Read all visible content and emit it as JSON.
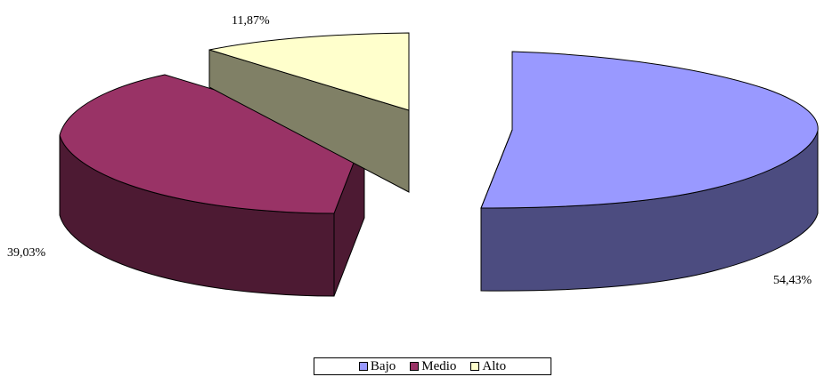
{
  "chart_data": {
    "type": "pie",
    "style": "3d-exploded",
    "title": "",
    "series": [
      {
        "name": "",
        "slices": [
          {
            "label": "Bajo",
            "value": 54.43,
            "data_label": "54,43%",
            "color": "#9999ff",
            "side_color": "#4c4c80"
          },
          {
            "label": "Medio",
            "value": 39.03,
            "data_label": "39,03%",
            "color": "#993366",
            "side_color": "#4d1a33"
          },
          {
            "label": "Alto",
            "value": 11.87,
            "data_label": "11,87%",
            "color": "#ffffcc",
            "side_color": "#808066"
          }
        ]
      }
    ],
    "legend": {
      "position": "bottom",
      "entries": [
        "Bajo",
        "Medio",
        "Alto"
      ]
    }
  }
}
